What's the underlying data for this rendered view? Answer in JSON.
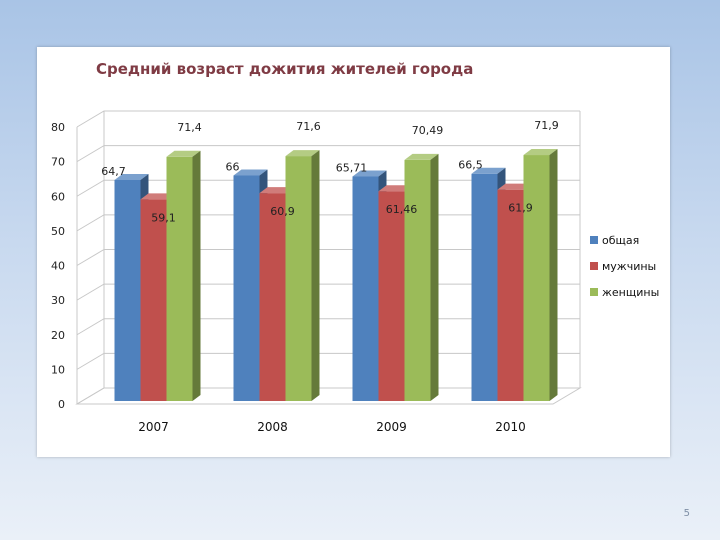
{
  "slide": {
    "number": "5"
  },
  "chart_data": {
    "type": "bar",
    "title": "Средний возраст дожития жителей города",
    "categories": [
      "2007",
      "2008",
      "2009",
      "2010"
    ],
    "series": [
      {
        "name": "общая",
        "color": "#4f81bd",
        "values": [
          64.7,
          66,
          65.71,
          66.5
        ],
        "labels": [
          "64,7",
          "66",
          "65,71",
          "66,5"
        ]
      },
      {
        "name": "мужчины",
        "color": "#c0504d",
        "values": [
          59.1,
          60.9,
          61.46,
          61.9
        ],
        "labels": [
          "59,1",
          "60,9",
          "61,46",
          "61,9"
        ]
      },
      {
        "name": "женщины",
        "color": "#9bbb59",
        "values": [
          71.4,
          71.6,
          70.49,
          71.9
        ],
        "labels": [
          "71,4",
          "71,6",
          "70,49",
          "71,9"
        ]
      }
    ],
    "yticks": [
      "0",
      "10",
      "20",
      "30",
      "40",
      "50",
      "60",
      "70",
      "80"
    ],
    "ylim": [
      0,
      80
    ],
    "grid": true,
    "legend_position": "right",
    "style": "3d-clustered-column"
  }
}
